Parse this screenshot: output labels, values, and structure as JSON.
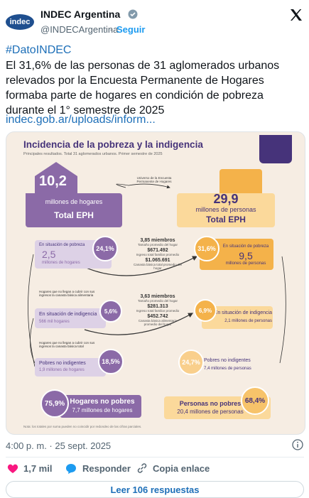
{
  "header": {
    "avatar_text": "indec",
    "name": "INDEC Argentina",
    "handle": "@INDECArgentina",
    "separator": "·",
    "follow": "Seguir"
  },
  "post": {
    "hashtag": "#DatoINDEC",
    "text": "El 31,6% de las personas de 31 aglomerados urbanos relevados por la Encuesta Permanente de Hogares formaba parte de hogares en condición de pobreza durante el 1° semestre de 2025",
    "link": "indec.gob.ar/uploads/inform..."
  },
  "infographic": {
    "title": "Incidencia de la pobreza y la indigencia",
    "subtitle": "Principales resultados. Total 31 aglomerados urbanos. Primer semestre de 2025",
    "universe": "Universo de la Encuesta Permanente de Hogares",
    "households_total": {
      "value": "10,2",
      "unit": "millones de hogares",
      "label": "Total EPH"
    },
    "persons_total": {
      "value": "29,9",
      "unit": "millones de personas",
      "label": "Total EPH"
    },
    "poverty": {
      "households": {
        "label": "En situación de pobreza",
        "value": "2,5",
        "unit": "millones de hogares",
        "percent": "24,1%"
      },
      "stats": [
        "3,85 miembros",
        "Tamaño promedio del hogar",
        "$671.492",
        "Ingreso total familiar promedio",
        "$1.065.691",
        "Canasta básica total promedio del hogar"
      ],
      "persons": {
        "label": "En situación de pobreza",
        "value": "9,5",
        "unit": "millones de personas",
        "percent": "31,6%"
      }
    },
    "indigence": {
      "note": "Hogares que no llegan a cubrir con sus ingresos la canasta básica alimentaria",
      "households": {
        "label": "En situación de indigencia",
        "value": "566 mil hogares",
        "percent": "5,6%"
      },
      "stats": [
        "3,63 miembros",
        "Tamaño promedio del hogar",
        "$281.313",
        "Ingreso total familiar promedio",
        "$452.742",
        "Canasta básica alimentaria promedio del hogar"
      ],
      "persons": {
        "label": "En situación de indigencia",
        "value": "2,1 millones de personas",
        "percent": "6,9%"
      }
    },
    "non_indigent": {
      "note": "Hogares que no llegan a cubrir con sus ingresos la canasta básica total",
      "households": {
        "label": "Pobres no indigentes",
        "value": "1,9 millones de hogares",
        "percent": "18,5%"
      },
      "persons": {
        "label": "Pobres no indigentes",
        "value": "7,4 millones de personas",
        "percent": "24,7%"
      }
    },
    "non_poor": {
      "households": {
        "label": "Hogares no pobres",
        "value": "7,7 millones de hogares",
        "percent": "75,9%"
      },
      "persons": {
        "label": "Personas no pobres",
        "value": "20,4 millones de personas",
        "percent": "68,4%"
      }
    },
    "footnote": "Nota: los totales por suma pueden no coincidir por redondeo de las cifras parciales."
  },
  "footer": {
    "timestamp": "4:00 p. m. · 25 sept. 2025",
    "likes": "1,7 mil",
    "reply": "Responder",
    "copy_link": "Copia enlace",
    "read_replies": "Leer 106 respuestas"
  }
}
